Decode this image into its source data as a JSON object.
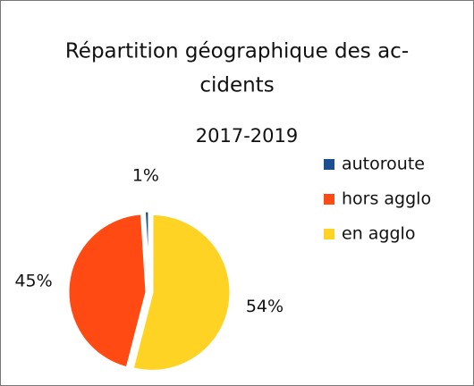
{
  "chart_data": {
    "type": "pie",
    "title": [
      "Répartition géographique des ac-",
      "cidents"
    ],
    "subtitle": "2017-2019",
    "categories": [
      "autoroute",
      "hors agglo",
      "en agglo"
    ],
    "values": [
      1,
      45,
      54
    ],
    "value_labels": [
      "1%",
      "45%",
      "54%"
    ],
    "colors": [
      "#1b4f8f",
      "#ff4a14",
      "#ffd323"
    ],
    "legend": "right"
  }
}
